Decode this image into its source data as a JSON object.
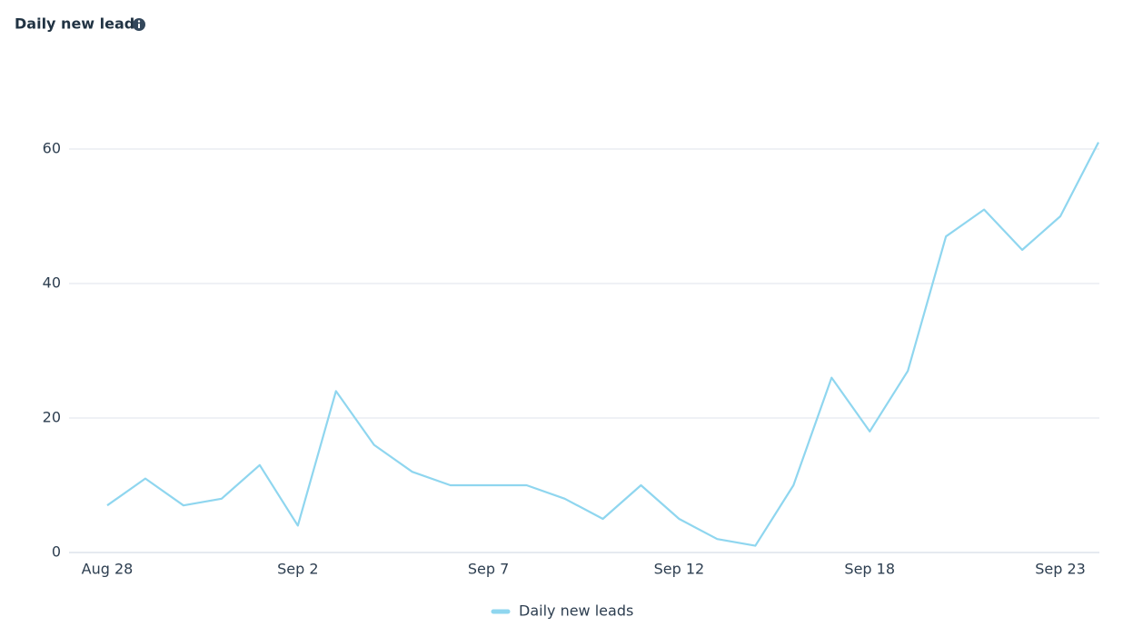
{
  "chart_data": {
    "type": "line",
    "title": "Daily new leads",
    "categories": [
      "Aug 28",
      null,
      null,
      null,
      null,
      "Sep 2",
      null,
      null,
      null,
      null,
      "Sep 7",
      null,
      null,
      null,
      null,
      "Sep 12",
      null,
      null,
      null,
      null,
      "Sep 18",
      null,
      null,
      null,
      null,
      "Sep 23",
      null
    ],
    "series": [
      {
        "name": "Daily new leads",
        "color": "#8fd6ef",
        "values": [
          7,
          11,
          7,
          8,
          13,
          4,
          24,
          16,
          12,
          10,
          10,
          10,
          8,
          5,
          10,
          5,
          2,
          1,
          10,
          26,
          18,
          27,
          47,
          51,
          45,
          50,
          61
        ]
      }
    ],
    "ylim": [
      0,
      60
    ],
    "yticks": [
      0,
      20,
      40,
      60
    ],
    "grid": true
  }
}
